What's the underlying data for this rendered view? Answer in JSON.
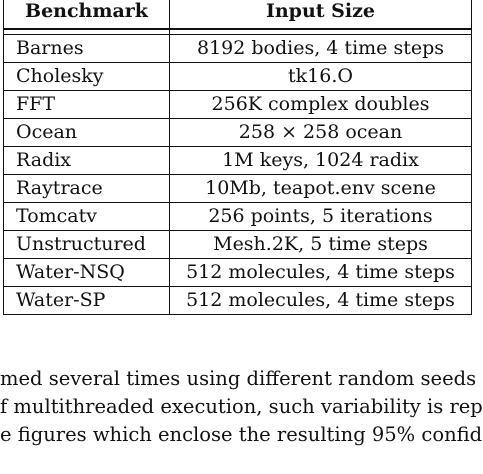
{
  "table": {
    "headers": [
      "Benchmark",
      "Input Size"
    ],
    "rows": [
      {
        "benchmark": "Barnes",
        "input_size": "8192 bodies, 4 time steps"
      },
      {
        "benchmark": "Cholesky",
        "input_size": "tk16.O"
      },
      {
        "benchmark": "FFT",
        "input_size": "256K complex doubles"
      },
      {
        "benchmark": "Ocean",
        "input_size": "258 × 258 ocean"
      },
      {
        "benchmark": "Radix",
        "input_size": "1M keys, 1024 radix"
      },
      {
        "benchmark": "Raytrace",
        "input_size": "10Mb, teapot.env scene"
      },
      {
        "benchmark": "Tomcatv",
        "input_size": "256 points, 5 iterations"
      },
      {
        "benchmark": "Unstructured",
        "input_size": "Mesh.2K, 5 time steps"
      },
      {
        "benchmark": "Water-NSQ",
        "input_size": "512 molecules, 4 time steps"
      },
      {
        "benchmark": "Water-SP",
        "input_size": "512 molecules, 4 time steps"
      }
    ]
  },
  "paragraph": {
    "lines": [
      "med several times using different random seeds",
      "f multithreaded execution, such variability is rep",
      "e figures which enclose the resulting 95% confid"
    ]
  }
}
